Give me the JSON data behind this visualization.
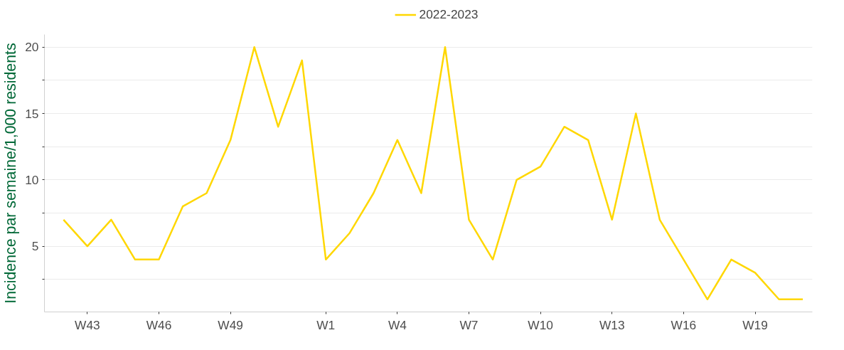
{
  "chart_data": {
    "type": "line",
    "ylabel": "Incidence par semaine/1,000 residents",
    "categories": [
      null,
      "W43",
      null,
      null,
      "W46",
      null,
      null,
      "W49",
      null,
      null,
      null,
      "W1",
      null,
      null,
      "W4",
      null,
      null,
      "W7",
      null,
      null,
      "W10",
      null,
      null,
      "W13",
      null,
      null,
      "W16",
      null,
      null,
      "W19",
      null,
      null
    ],
    "series": [
      {
        "name": "2022-2023",
        "color": "#ffd700",
        "values": [
          7,
          5,
          7,
          4,
          4,
          8,
          9,
          13,
          20,
          14,
          19,
          4,
          6,
          9,
          13,
          9,
          20,
          7,
          4,
          10,
          11,
          14,
          13,
          7,
          15,
          7,
          4,
          1,
          4,
          3,
          1,
          1
        ]
      }
    ],
    "ylim": [
      0.05,
      20.95
    ],
    "yticks": [
      {
        "value": 2.5,
        "label": null
      },
      5,
      {
        "value": 7.5,
        "label": null
      },
      10,
      {
        "value": 12.5,
        "label": null
      },
      15,
      {
        "value": 17.5,
        "label": null
      },
      20
    ],
    "grid": "y",
    "legend": "top",
    "line_style": "solid"
  }
}
